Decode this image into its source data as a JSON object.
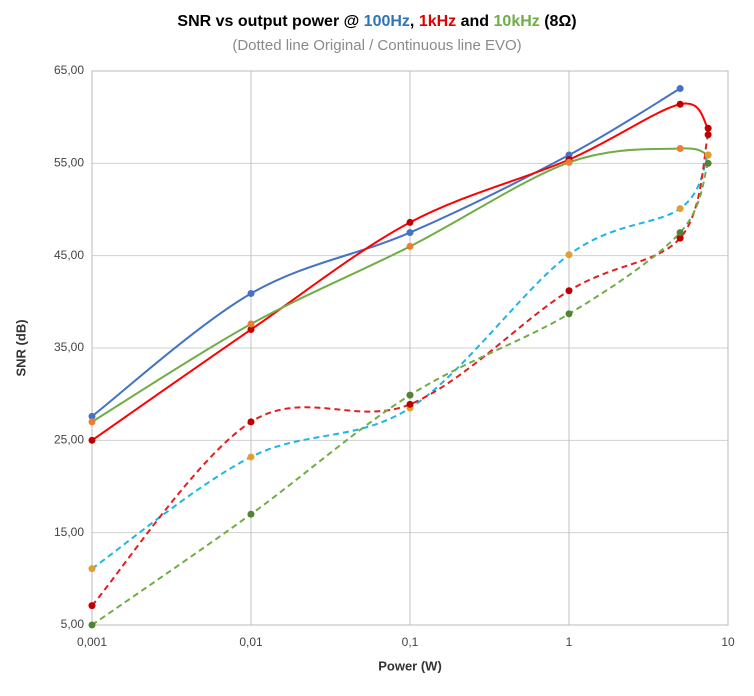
{
  "chart_data": {
    "type": "line",
    "title_parts": [
      {
        "text": "SNR vs output power @ ",
        "color": "#000000"
      },
      {
        "text": "100Hz",
        "color": "#2e75b6"
      },
      {
        "text": ", ",
        "color": "#000000"
      },
      {
        "text": "1kHz",
        "color": "#e00000"
      },
      {
        "text": " and ",
        "color": "#000000"
      },
      {
        "text": "10kHz",
        "color": "#70ad47"
      },
      {
        "text": " (8Ω)",
        "color": "#000000"
      }
    ],
    "subtitle": "(Dotted line Original / Continuous line EVO)",
    "x_label": "Power (W)",
    "y_label": "SNR (dB)",
    "x_log": true,
    "grid": true,
    "x": [
      0.001,
      0.01,
      0.1,
      1,
      5,
      7.5
    ],
    "xlim": [
      0.001,
      10
    ],
    "xticks": [
      {
        "value": 0.001,
        "label": "0,001"
      },
      {
        "value": 0.01,
        "label": "0,01"
      },
      {
        "value": 0.1,
        "label": "0,1"
      },
      1,
      10
    ],
    "ylim": [
      5,
      65
    ],
    "yticks": [
      {
        "value": 5,
        "label": "5,00"
      },
      {
        "value": 15,
        "label": "15,00"
      },
      {
        "value": 25,
        "label": "25,00"
      },
      {
        "value": 35,
        "label": "35,00"
      },
      {
        "value": 45,
        "label": "45,00"
      },
      {
        "value": 55,
        "label": "55,00"
      },
      {
        "value": 65,
        "label": "65,00"
      }
    ],
    "series": [
      {
        "color": "#4472c4",
        "marker_color": "#4472c4",
        "style": "solid",
        "values": [
          27.6,
          40.9,
          47.5,
          55.9,
          63.1,
          null
        ]
      },
      {
        "color": "#ff0000",
        "marker_color": "#c00000",
        "style": "solid",
        "values": [
          25.0,
          37.0,
          48.6,
          55.4,
          61.4,
          58.8
        ]
      },
      {
        "color": "#70ad47",
        "marker_color": "#ed7d31",
        "style": "solid",
        "values": [
          27.0,
          37.6,
          46.0,
          55.1,
          56.6,
          55.9
        ]
      },
      {
        "color": "#1fb5e8",
        "marker_color": "#e0a030",
        "style": "dashed",
        "values": [
          11.1,
          23.2,
          28.5,
          45.1,
          50.1,
          55.9
        ]
      },
      {
        "color": "#e02020",
        "marker_color": "#c00000",
        "style": "dashed",
        "values": [
          7.1,
          27.0,
          28.9,
          41.2,
          46.9,
          58.1
        ]
      },
      {
        "color": "#70ad47",
        "marker_color": "#548235",
        "style": "dashed",
        "values": [
          5.0,
          17.0,
          29.9,
          38.7,
          47.5,
          55.0
        ]
      }
    ]
  }
}
